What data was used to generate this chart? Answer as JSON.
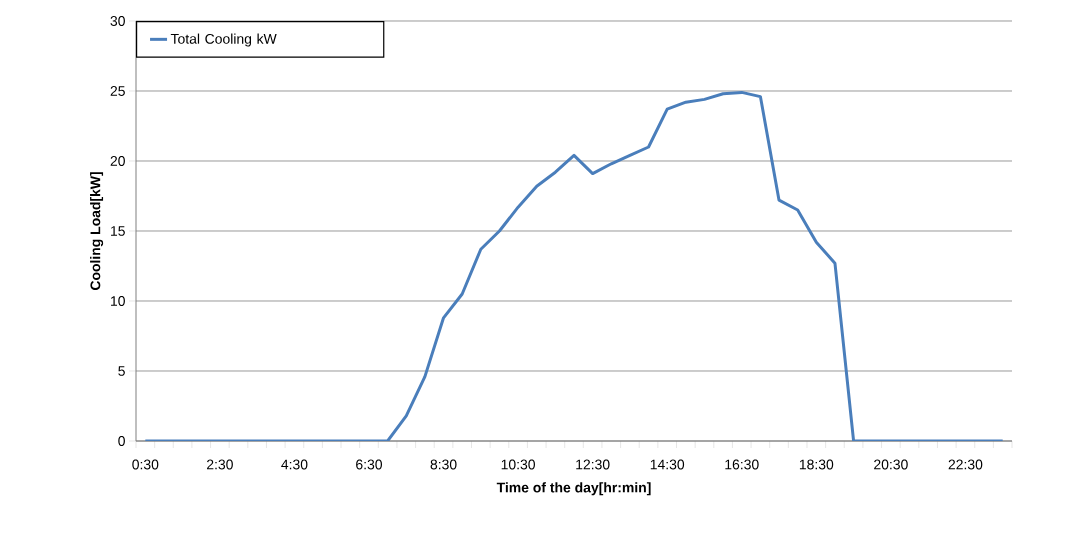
{
  "chart_data": {
    "type": "line",
    "xlabel": "Time of the day[hr:min]",
    "ylabel": "Cooling Load[kW]",
    "categories": [
      "0:30",
      null,
      null,
      null,
      "2:30",
      null,
      null,
      null,
      "4:30",
      null,
      null,
      null,
      "6:30",
      null,
      null,
      null,
      "8:30",
      null,
      null,
      null,
      "10:30",
      null,
      null,
      null,
      "12:30",
      null,
      null,
      null,
      "14:30",
      null,
      null,
      null,
      "16:30",
      null,
      null,
      null,
      "18:30",
      null,
      null,
      null,
      "20:30",
      null,
      null,
      null,
      "22:30",
      null,
      null
    ],
    "series": [
      {
        "name": "Total Cooling kW",
        "color": "#4a7ebb",
        "values": [
          0,
          0,
          0,
          0,
          0,
          0,
          0,
          0,
          0,
          0,
          0,
          0,
          0,
          0,
          1.8,
          4.6,
          8.8,
          10.5,
          13.7,
          15.0,
          16.7,
          18.2,
          19.2,
          20.4,
          19.1,
          19.8,
          20.4,
          21.0,
          23.7,
          24.2,
          24.4,
          24.8,
          24.9,
          24.6,
          17.2,
          16.5,
          14.2,
          12.7,
          0,
          0,
          0,
          0,
          0,
          0,
          0,
          0,
          0
        ]
      }
    ],
    "ylim": [
      0,
      30
    ],
    "yticks": [
      0,
      5,
      10,
      15,
      20,
      25,
      30
    ],
    "grid": "y",
    "legend": "top left",
    "marker": "none",
    "line_style": "solid"
  }
}
